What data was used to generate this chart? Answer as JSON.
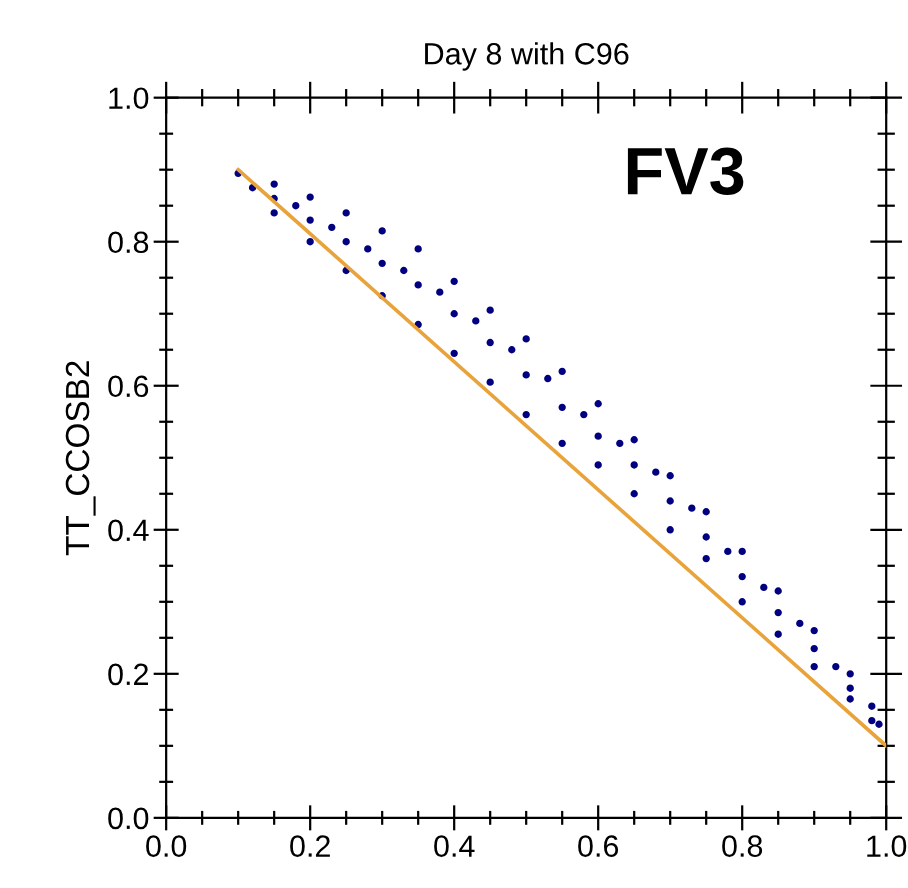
{
  "chart_data": {
    "type": "scatter",
    "title": "Day 8 with C96",
    "ylabel": "TT_CCOSB2",
    "annotations": [
      "FV3"
    ],
    "xlim": [
      0.0,
      1.0
    ],
    "ylim": [
      0.0,
      1.0
    ],
    "xticks": [
      {
        "value": 0.0,
        "label": "0.0"
      },
      {
        "value": 0.05,
        "label": null
      },
      {
        "value": 0.1,
        "label": null
      },
      {
        "value": 0.15,
        "label": null
      },
      {
        "value": 0.2,
        "label": "0.2"
      },
      {
        "value": 0.25,
        "label": null
      },
      {
        "value": 0.3,
        "label": null
      },
      {
        "value": 0.35,
        "label": null
      },
      {
        "value": 0.4,
        "label": "0.4"
      },
      {
        "value": 0.45,
        "label": null
      },
      {
        "value": 0.5,
        "label": null
      },
      {
        "value": 0.55,
        "label": null
      },
      {
        "value": 0.6,
        "label": "0.6"
      },
      {
        "value": 0.65,
        "label": null
      },
      {
        "value": 0.7,
        "label": null
      },
      {
        "value": 0.75,
        "label": null
      },
      {
        "value": 0.8,
        "label": "0.8"
      },
      {
        "value": 0.85,
        "label": null
      },
      {
        "value": 0.9,
        "label": null
      },
      {
        "value": 0.95,
        "label": null
      },
      {
        "value": 1.0,
        "label": "1.0"
      }
    ],
    "yticks": [
      {
        "value": 0.0,
        "label": "0.0"
      },
      {
        "value": 0.05,
        "label": null
      },
      {
        "value": 0.1,
        "label": null
      },
      {
        "value": 0.15,
        "label": null
      },
      {
        "value": 0.2,
        "label": "0.2"
      },
      {
        "value": 0.25,
        "label": null
      },
      {
        "value": 0.3,
        "label": null
      },
      {
        "value": 0.35,
        "label": null
      },
      {
        "value": 0.4,
        "label": "0.4"
      },
      {
        "value": 0.45,
        "label": null
      },
      {
        "value": 0.5,
        "label": null
      },
      {
        "value": 0.55,
        "label": null
      },
      {
        "value": 0.6,
        "label": "0.6"
      },
      {
        "value": 0.65,
        "label": null
      },
      {
        "value": 0.7,
        "label": null
      },
      {
        "value": 0.75,
        "label": null
      },
      {
        "value": 0.8,
        "label": "0.8"
      },
      {
        "value": 0.85,
        "label": null
      },
      {
        "value": 0.9,
        "label": null
      },
      {
        "value": 0.95,
        "label": null
      },
      {
        "value": 1.0,
        "label": "1.0"
      }
    ],
    "grid": false,
    "legend": false,
    "series": [
      {
        "marker": "circle",
        "color": "#000080",
        "x": [
          0.1,
          0.15,
          0.2,
          0.25,
          0.3,
          0.35,
          0.4,
          0.45,
          0.5,
          0.55,
          0.6,
          0.65,
          0.7,
          0.75,
          0.8,
          0.85,
          0.9,
          0.95,
          0.98,
          0.12,
          0.15,
          0.2,
          0.25,
          0.3,
          0.35,
          0.4,
          0.45,
          0.5,
          0.55,
          0.6,
          0.65,
          0.7,
          0.75,
          0.8,
          0.85,
          0.9,
          0.95,
          0.98,
          0.15,
          0.2,
          0.25,
          0.3,
          0.35,
          0.4,
          0.45,
          0.5,
          0.55,
          0.6,
          0.65,
          0.7,
          0.75,
          0.8,
          0.85,
          0.9,
          0.95,
          0.99,
          0.18,
          0.23,
          0.28,
          0.33,
          0.38,
          0.43,
          0.48,
          0.53,
          0.58,
          0.63,
          0.68,
          0.73,
          0.78,
          0.83,
          0.88,
          0.93
        ],
        "values": [
          0.895,
          0.88,
          0.862,
          0.84,
          0.815,
          0.79,
          0.745,
          0.705,
          0.665,
          0.62,
          0.575,
          0.525,
          0.475,
          0.425,
          0.37,
          0.315,
          0.26,
          0.2,
          0.155,
          0.875,
          0.84,
          0.8,
          0.76,
          0.725,
          0.685,
          0.645,
          0.605,
          0.56,
          0.52,
          0.49,
          0.45,
          0.4,
          0.36,
          0.3,
          0.255,
          0.21,
          0.165,
          0.135,
          0.86,
          0.83,
          0.8,
          0.77,
          0.74,
          0.7,
          0.66,
          0.615,
          0.57,
          0.53,
          0.49,
          0.44,
          0.39,
          0.335,
          0.285,
          0.235,
          0.18,
          0.13,
          0.85,
          0.82,
          0.79,
          0.76,
          0.73,
          0.69,
          0.65,
          0.61,
          0.56,
          0.52,
          0.48,
          0.43,
          0.37,
          0.32,
          0.27,
          0.21
        ]
      },
      {
        "type": "line",
        "marker": "none",
        "color": "#e8a33a",
        "x": [
          0.1,
          1.0
        ],
        "values": [
          0.9,
          0.1
        ]
      }
    ]
  }
}
